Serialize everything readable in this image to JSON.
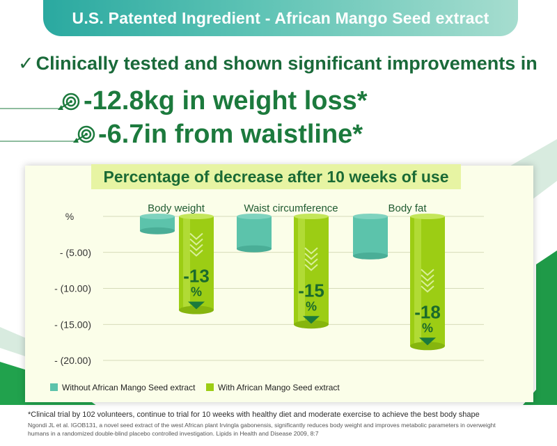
{
  "banner": {
    "title": "U.S. Patented Ingredient - African Mango Seed extract"
  },
  "headline": {
    "check": "✓",
    "text": "Clinically tested and shown significant improvements in"
  },
  "claims": [
    {
      "text": "-12.8kg in weight loss*"
    },
    {
      "text": "-6.7in from waistline*"
    }
  ],
  "colors": {
    "without": "#5cc3ab",
    "with": "#9ccd14",
    "dark_green": "#1b7a3c",
    "title_bg": "#e7f4a3"
  },
  "chart_data": {
    "type": "bar",
    "title": "Percentage of decrease after 10 weeks of use",
    "ylabel": "%",
    "ylim": [
      -20,
      0
    ],
    "yticks": [
      0,
      -5,
      -10,
      -15,
      -20
    ],
    "ytick_labels": [
      "%",
      "- (5.00)",
      "- (10.00)",
      "- (15.00)",
      "- (20.00)"
    ],
    "categories": [
      "Body weight",
      "Waist circumference",
      "Body fat"
    ],
    "series": [
      {
        "name": "Without African Mango Seed extract",
        "values": [
          -2,
          -4.5,
          -5.5
        ]
      },
      {
        "name": "With African Mango Seed extract",
        "values": [
          -13,
          -15,
          -18
        ]
      }
    ],
    "data_labels": [
      "-13",
      "-15",
      "-18"
    ],
    "data_label_unit": "%",
    "legend_position": "bottom-left"
  },
  "footnote": "*Clinical trial by 102 volunteers, continue to trial for 10 weeks with healthy diet and moderate exercise to achieve the best body shape",
  "reference": "Ngondi JL et al. IGOB131, a novel seed extract of the west African plant Irvingla gabonensis, significantly reduces body weight and improves metabolic parameters in overweight humans in a randomized double-blind placebo controlled investigation. Lipids in Health and Disease 2009, 8:7"
}
